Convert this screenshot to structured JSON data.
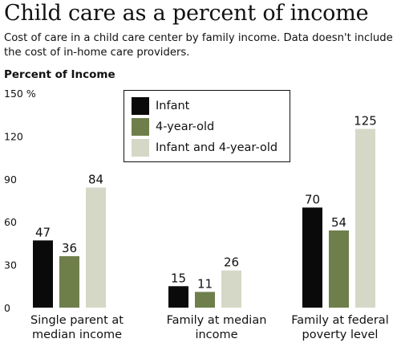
{
  "chart_data": {
    "type": "bar",
    "title": "Child care as a percent of income",
    "subtitle": "Cost of care in a child care center by family income. Data doesn't include the cost of in-home care providers.",
    "ylabel": "Percent of Income",
    "ylim": [
      0,
      150
    ],
    "yticks": [
      "0",
      "30",
      "60",
      "90",
      "120",
      "150 %"
    ],
    "categories": [
      "Single parent at median income",
      "Family at median income",
      "Family at federal poverty level"
    ],
    "series": [
      {
        "name": "Infant",
        "color": "#0a0a0a",
        "values": [
          47,
          15,
          70
        ]
      },
      {
        "name": "4-year-old",
        "color": "#6f7f4b",
        "values": [
          36,
          11,
          54
        ]
      },
      {
        "name": "Infant and 4-year-old",
        "color": "#d5d8c6",
        "values": [
          84,
          26,
          125
        ]
      }
    ],
    "grid": false,
    "legend": "top-center"
  }
}
